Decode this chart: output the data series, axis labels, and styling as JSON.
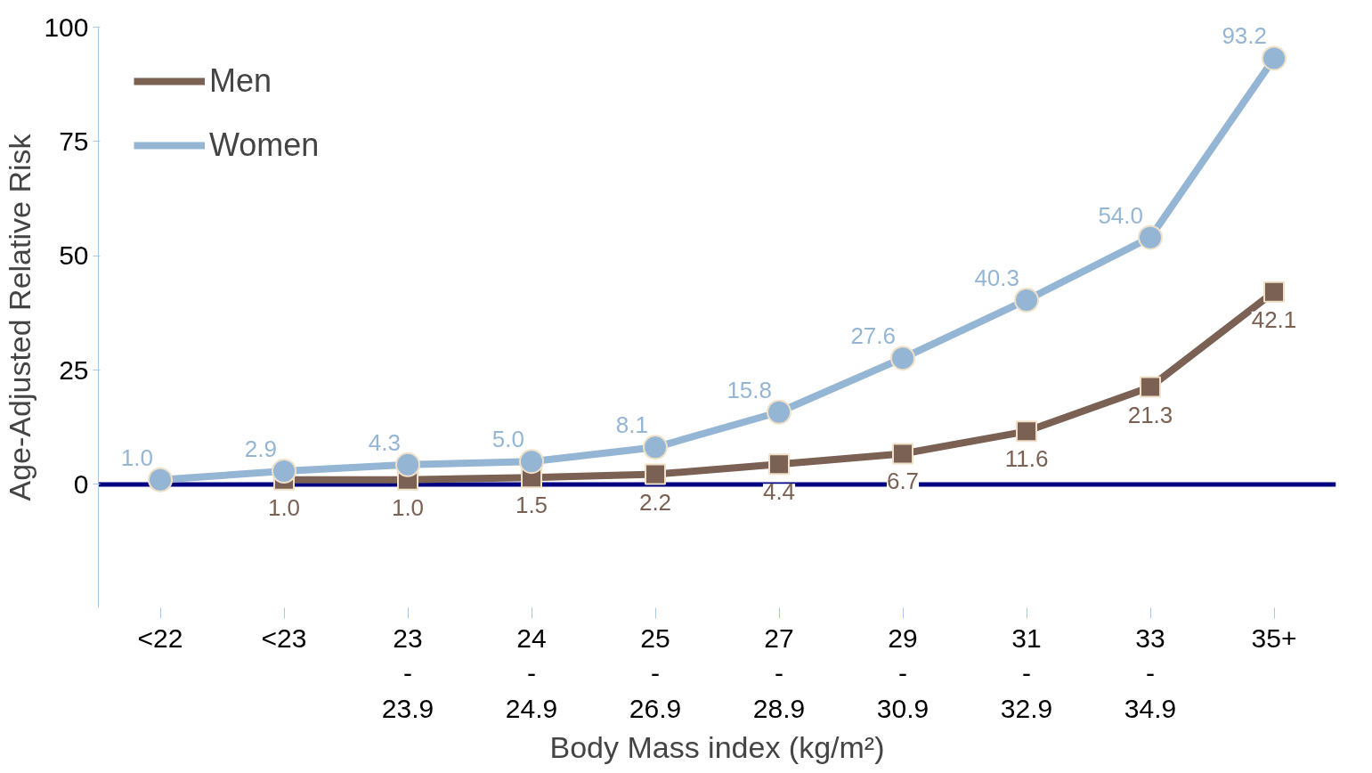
{
  "chart_data": {
    "type": "line",
    "xlabel": "Body Mass index (kg/m²)",
    "ylabel": "Age-Adjusted Relative Risk",
    "categories": [
      "<22",
      "<23",
      "23\n-\n23.9",
      "24\n-\n24.9",
      "25\n-\n26.9",
      "27\n-\n28.9",
      "29\n-\n30.9",
      "31\n-\n32.9",
      "33\n-\n34.9",
      "35+"
    ],
    "series": [
      {
        "name": "Men",
        "color": "#7a6153",
        "marker": "square",
        "values": [
          null,
          1.0,
          1.0,
          1.5,
          2.2,
          4.4,
          6.7,
          11.6,
          21.3,
          42.1
        ],
        "value_labels": [
          null,
          "1.0",
          "1.0",
          "1.5",
          "2.2",
          "4.4",
          "6.7",
          "11.6",
          "21.3",
          "42.1"
        ]
      },
      {
        "name": "Women",
        "color": "#94b6d4",
        "marker": "circle",
        "values": [
          1.0,
          2.9,
          4.3,
          5.0,
          8.1,
          15.8,
          27.6,
          40.3,
          54.0,
          93.2
        ],
        "value_labels": [
          "1.0",
          "2.9",
          "4.3",
          "5.0",
          "8.1",
          "15.8",
          "27.6",
          "40.3",
          "54.0",
          "93.2"
        ]
      }
    ],
    "ylim": [
      -27,
      100
    ],
    "yticks": [
      0,
      25,
      50,
      75,
      100
    ],
    "ref_lines": [
      {
        "axis": "y",
        "value": 0,
        "label": null,
        "color": "#000080"
      }
    ],
    "grid": false,
    "legend": "top left",
    "line_style": "solid"
  }
}
